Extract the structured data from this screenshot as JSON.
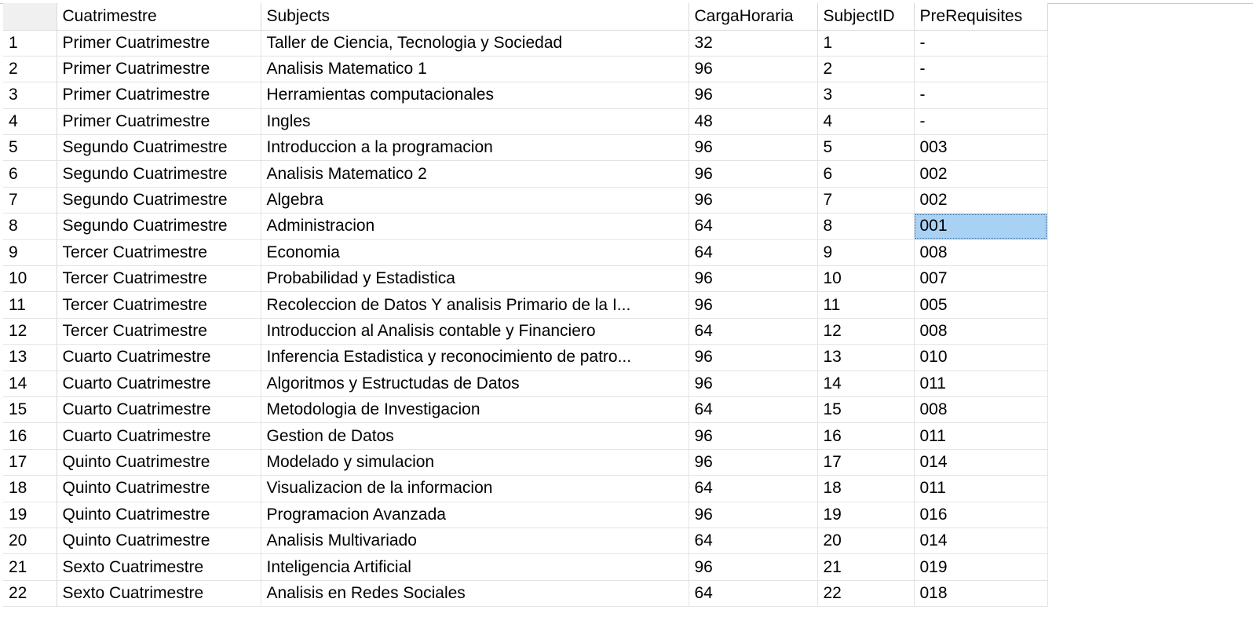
{
  "grid": {
    "columns": [
      "Cuatrimestre",
      "Subjects",
      "CargaHoraria",
      "SubjectID",
      "PreRequisites"
    ],
    "selected_cell": {
      "row": 8,
      "column": "PreRequisites"
    },
    "selection_color": "#a9d1f4",
    "rows": [
      {
        "n": "1",
        "cuatrimestre": "Primer Cuatrimestre",
        "subject": "Taller de Ciencia, Tecnologia y Sociedad",
        "carga": "32",
        "id": "1",
        "pre": "-"
      },
      {
        "n": "2",
        "cuatrimestre": "Primer Cuatrimestre",
        "subject": "Analisis Matematico 1",
        "carga": "96",
        "id": "2",
        "pre": "-"
      },
      {
        "n": "3",
        "cuatrimestre": "Primer Cuatrimestre",
        "subject": "Herramientas computacionales",
        "carga": "96",
        "id": "3",
        "pre": "-"
      },
      {
        "n": "4",
        "cuatrimestre": "Primer Cuatrimestre",
        "subject": "Ingles",
        "carga": "48",
        "id": "4",
        "pre": "-"
      },
      {
        "n": "5",
        "cuatrimestre": "Segundo Cuatrimestre",
        "subject": "Introduccion a la programacion",
        "carga": "96",
        "id": "5",
        "pre": "003"
      },
      {
        "n": "6",
        "cuatrimestre": "Segundo Cuatrimestre",
        "subject": "Analisis Matematico 2",
        "carga": "96",
        "id": "6",
        "pre": "002"
      },
      {
        "n": "7",
        "cuatrimestre": "Segundo Cuatrimestre",
        "subject": "Algebra",
        "carga": "96",
        "id": "7",
        "pre": "002"
      },
      {
        "n": "8",
        "cuatrimestre": "Segundo Cuatrimestre",
        "subject": "Administracion",
        "carga": "64",
        "id": "8",
        "pre": "001"
      },
      {
        "n": "9",
        "cuatrimestre": "Tercer Cuatrimestre",
        "subject": "Economia",
        "carga": "64",
        "id": "9",
        "pre": "008"
      },
      {
        "n": "10",
        "cuatrimestre": "Tercer Cuatrimestre",
        "subject": "Probabilidad y Estadistica",
        "carga": "96",
        "id": "10",
        "pre": "007"
      },
      {
        "n": "11",
        "cuatrimestre": "Tercer Cuatrimestre",
        "subject": "Recoleccion de Datos Y analisis Primario de la I...",
        "carga": "96",
        "id": "11",
        "pre": "005"
      },
      {
        "n": "12",
        "cuatrimestre": "Tercer Cuatrimestre",
        "subject": "Introduccion al Analisis contable y Financiero",
        "carga": "64",
        "id": "12",
        "pre": "008"
      },
      {
        "n": "13",
        "cuatrimestre": "Cuarto Cuatrimestre",
        "subject": "Inferencia Estadistica y reconocimiento de patro...",
        "carga": "96",
        "id": "13",
        "pre": "010"
      },
      {
        "n": "14",
        "cuatrimestre": "Cuarto Cuatrimestre",
        "subject": "Algoritmos y Estructudas de Datos",
        "carga": "96",
        "id": "14",
        "pre": "011"
      },
      {
        "n": "15",
        "cuatrimestre": "Cuarto Cuatrimestre",
        "subject": "Metodologia de Investigacion",
        "carga": "64",
        "id": "15",
        "pre": "008"
      },
      {
        "n": "16",
        "cuatrimestre": "Cuarto Cuatrimestre",
        "subject": "Gestion de Datos",
        "carga": "96",
        "id": "16",
        "pre": "011"
      },
      {
        "n": "17",
        "cuatrimestre": "Quinto Cuatrimestre",
        "subject": "Modelado y simulacion",
        "carga": "96",
        "id": "17",
        "pre": "014"
      },
      {
        "n": "18",
        "cuatrimestre": "Quinto Cuatrimestre",
        "subject": "Visualizacion de la informacion",
        "carga": "64",
        "id": "18",
        "pre": "011"
      },
      {
        "n": "19",
        "cuatrimestre": "Quinto Cuatrimestre",
        "subject": "Programacion Avanzada",
        "carga": "96",
        "id": "19",
        "pre": "016"
      },
      {
        "n": "20",
        "cuatrimestre": "Quinto Cuatrimestre",
        "subject": "Analisis Multivariado",
        "carga": "64",
        "id": "20",
        "pre": "014"
      },
      {
        "n": "21",
        "cuatrimestre": "Sexto Cuatrimestre",
        "subject": "Inteligencia Artificial",
        "carga": "96",
        "id": "21",
        "pre": "019"
      },
      {
        "n": "22",
        "cuatrimestre": "Sexto Cuatrimestre",
        "subject": "Analisis en Redes Sociales",
        "carga": "64",
        "id": "22",
        "pre": "018"
      }
    ]
  }
}
